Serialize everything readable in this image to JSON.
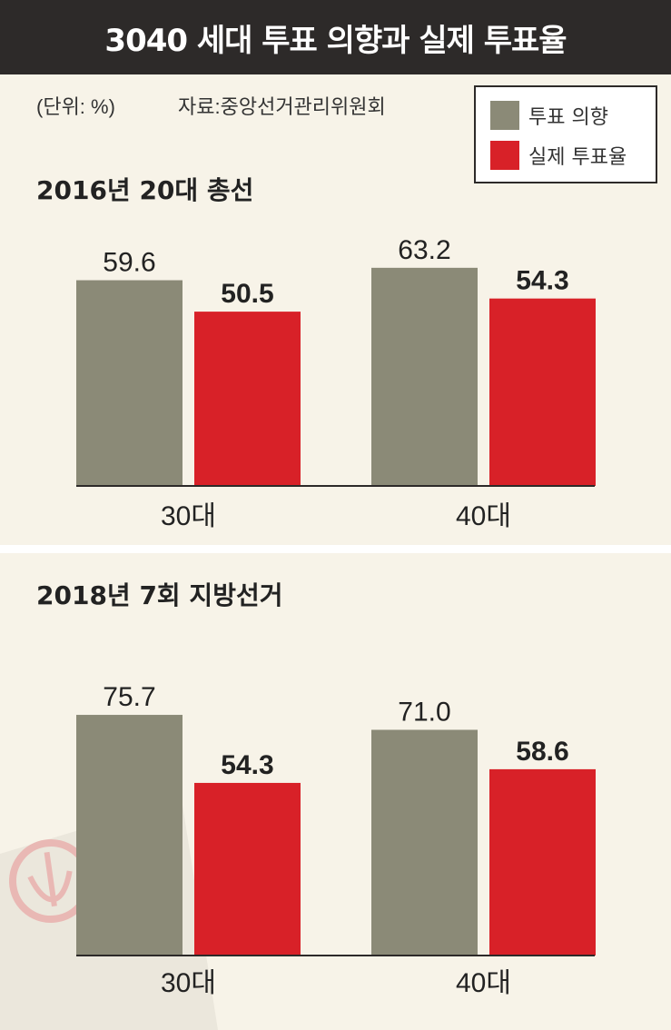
{
  "header": {
    "title": "3040 세대 투표 의향과 실제 투표율"
  },
  "meta": {
    "unit": "(단위: %)",
    "source": "자료:중앙선거관리위원회"
  },
  "legend": {
    "intent_label": "투표 의향",
    "actual_label": "실제 투표율"
  },
  "colors": {
    "intent": "#8b8a77",
    "actual": "#d82128",
    "header_bg": "#2d2a29",
    "background": "#f7f3e8"
  },
  "chart_data": [
    {
      "type": "bar",
      "title": "2016년 20대 총선",
      "categories": [
        "30대",
        "40대"
      ],
      "series": [
        {
          "name": "투표 의향",
          "values": [
            59.6,
            63.2
          ]
        },
        {
          "name": "실제 투표율",
          "values": [
            50.5,
            54.3
          ]
        }
      ],
      "value_labels": [
        [
          "59.6",
          "63.2"
        ],
        [
          "50.5",
          "54.3"
        ]
      ],
      "legend_position": "top-right",
      "grid": false
    },
    {
      "type": "bar",
      "title": "2018년 7회 지방선거",
      "categories": [
        "30대",
        "40대"
      ],
      "series": [
        {
          "name": "투표 의향",
          "values": [
            75.7,
            71.0
          ]
        },
        {
          "name": "실제 투표율",
          "values": [
            54.3,
            58.6
          ]
        }
      ],
      "value_labels": [
        [
          "75.7",
          "71.0"
        ],
        [
          "54.3",
          "58.6"
        ]
      ],
      "legend_position": "top-right",
      "grid": false
    }
  ]
}
